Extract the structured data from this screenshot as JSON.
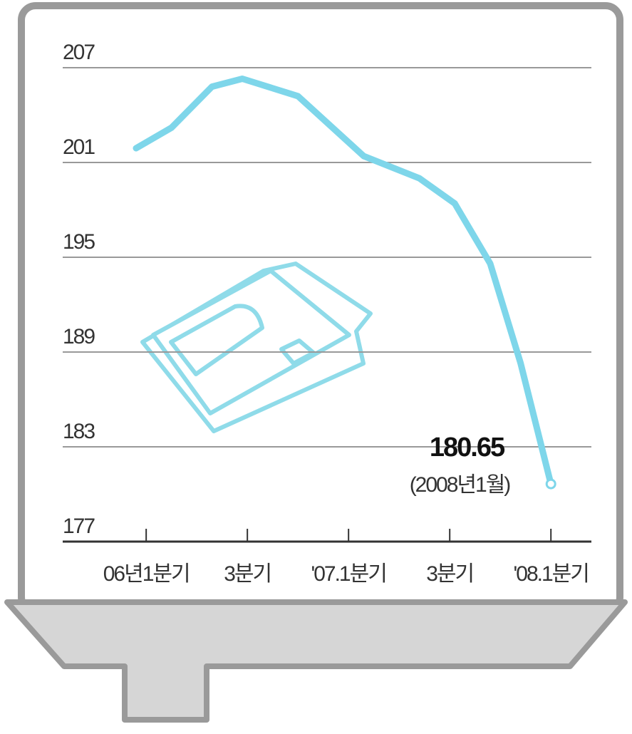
{
  "chart_data": {
    "type": "line",
    "x": [
      -0.2,
      0.5,
      1.3,
      1.9,
      3.0,
      4.3,
      5.4,
      6.1,
      6.8,
      7.4,
      8.0
    ],
    "values": [
      201.9,
      203.2,
      205.8,
      206.3,
      205.2,
      201.4,
      200.0,
      198.4,
      194.6,
      188.3,
      180.65
    ],
    "color": "#7ed6ea",
    "xlim": [
      -1.65,
      8.8
    ],
    "xticks": [
      {
        "value": 0,
        "label": "06년1분기"
      },
      {
        "value": 2,
        "label": "3분기"
      },
      {
        "value": 4,
        "label": "'07.1분기"
      },
      {
        "value": 6,
        "label": "3분기"
      },
      {
        "value": 8,
        "label": "'08.1분기"
      }
    ],
    "ylim": [
      177,
      207
    ],
    "yticks": [
      177,
      183,
      189,
      195,
      201,
      207
    ],
    "grid": true,
    "annotation": "(2008년1월)"
  }
}
